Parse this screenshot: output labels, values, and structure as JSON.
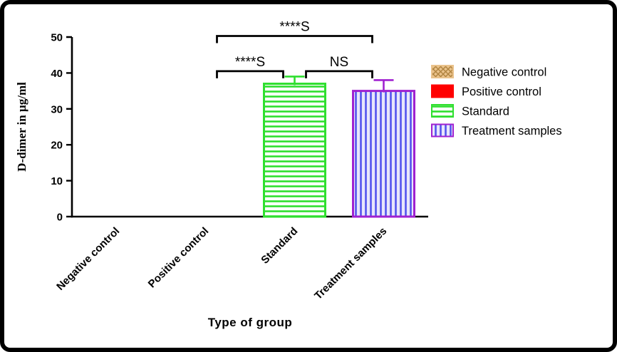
{
  "figure": {
    "frame_color": "#000000",
    "background_color": "#ffffff"
  },
  "chart_data": {
    "type": "bar",
    "title": "",
    "xlabel": "Type of group",
    "ylabel": "D-dimer in µg/ml",
    "ylim": [
      0,
      50
    ],
    "yticks": [
      0,
      10,
      20,
      30,
      40,
      50
    ],
    "grid": false,
    "legend_position": "right",
    "categories": [
      "Negative control",
      "Positive control",
      "Standard",
      "Treatment samples"
    ],
    "values": [
      0,
      0,
      37,
      35
    ],
    "errors": [
      0,
      0,
      2,
      3
    ],
    "styles": [
      {
        "fill": "#eac28b",
        "pattern": "crosshatch",
        "pattern_color": "#b08440",
        "stroke": "#eac28b"
      },
      {
        "fill": "#ff0000",
        "pattern": "solid",
        "pattern_color": "#ff0000",
        "stroke": "#ff0000"
      },
      {
        "fill": "#ffffff",
        "pattern": "hlines",
        "pattern_color": "#2fdf2f",
        "stroke": "#2fdf2f"
      },
      {
        "fill": "#e8e6fb",
        "pattern": "vlines",
        "pattern_color": "#5353ee",
        "stroke": "#a021d0"
      }
    ],
    "annotations": [
      {
        "label": "****S",
        "from": "Positive control",
        "to": "Standard",
        "bracket_y": 40.5
      },
      {
        "label": "NS",
        "from": "Standard",
        "to": "Treatment samples",
        "bracket_y": 40.5
      },
      {
        "label": "****S",
        "from": "Positive control",
        "to": "Treatment samples",
        "bracket_y": 50.3
      }
    ],
    "axis_color": "#000000",
    "annotation_color": "#000000"
  }
}
